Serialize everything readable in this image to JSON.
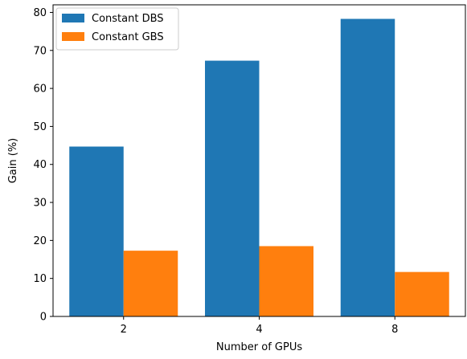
{
  "chart_data": {
    "type": "bar",
    "categories": [
      "2",
      "4",
      "8"
    ],
    "series": [
      {
        "name": "Constant DBS",
        "values": [
          44.7,
          67.3,
          78.3
        ],
        "color": "#1f77b4"
      },
      {
        "name": "Constant GBS",
        "values": [
          17.3,
          18.5,
          11.7
        ],
        "color": "#ff7f0e"
      }
    ],
    "xlabel": "Number of GPUs",
    "ylabel": "Gain (%)",
    "ylim": [
      0,
      82
    ],
    "yticks": [
      0,
      10,
      20,
      30,
      40,
      50,
      60,
      70,
      80
    ],
    "grid": false,
    "legend_position": "top-left"
  }
}
